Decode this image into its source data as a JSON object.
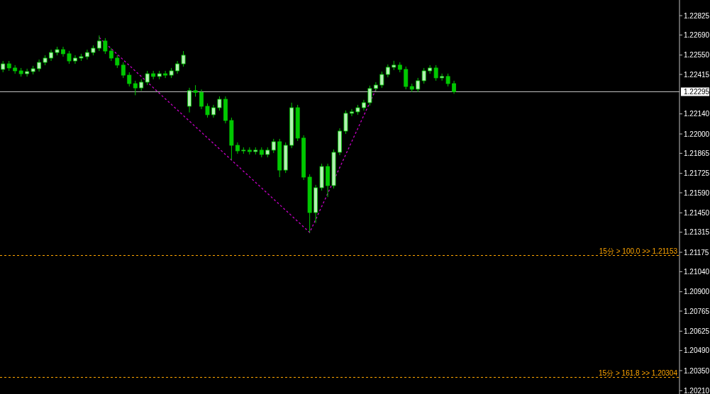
{
  "chart_data": {
    "type": "candlestick",
    "color": "#00c800",
    "tick_labels": "y",
    "categories": [
      null,
      null,
      null,
      null,
      null,
      null,
      null,
      null,
      null,
      null,
      null,
      null,
      null,
      null,
      null,
      null,
      null,
      null,
      null,
      null,
      null,
      null,
      null,
      null,
      null,
      null,
      null,
      null,
      null,
      null,
      null,
      null,
      null,
      null,
      null,
      null,
      null,
      null,
      null,
      null,
      null,
      null,
      null,
      null,
      null,
      null,
      null,
      null,
      null,
      null,
      null,
      null,
      null,
      null,
      null,
      null,
      null,
      null,
      null,
      null,
      null,
      null,
      null,
      null,
      null,
      null,
      null,
      null,
      null,
      null,
      null,
      null,
      null,
      null,
      null,
      null,
      null,
      null,
      null,
      null,
      null,
      null,
      null,
      null,
      null,
      null,
      null,
      null,
      null,
      null,
      null,
      null,
      null,
      null,
      null,
      null,
      null,
      null,
      null,
      null,
      null,
      null,
      null,
      null,
      null,
      null,
      null,
      null,
      null,
      null,
      null,
      null,
      null
    ],
    "ohlc": [
      [
        1.2245,
        1.22509,
        1.2243,
        1.22489
      ],
      [
        1.22489,
        1.22509,
        1.2244,
        1.2246
      ],
      [
        1.2246,
        1.2248,
        1.2242,
        1.2244
      ],
      [
        1.2244,
        1.2246,
        1.224,
        1.2242
      ],
      [
        1.2242,
        1.22455,
        1.224,
        1.22435
      ],
      [
        1.22435,
        1.22475,
        1.22415,
        1.22455
      ],
      [
        1.22455,
        1.22519,
        1.22435,
        1.22499
      ],
      [
        1.22499,
        1.22549,
        1.22479,
        1.22529
      ],
      [
        1.22529,
        1.22588,
        1.22509,
        1.22568
      ],
      [
        1.22568,
        1.22608,
        1.22548,
        1.22588
      ],
      [
        1.22588,
        1.22608,
        1.22539,
        1.22559
      ],
      [
        1.22559,
        1.22579,
        1.22489,
        1.22509
      ],
      [
        1.22509,
        1.22549,
        1.22489,
        1.22529
      ],
      [
        1.22529,
        1.22559,
        1.22509,
        1.22539
      ],
      [
        1.22539,
        1.22588,
        1.22519,
        1.22568
      ],
      [
        1.22568,
        1.22618,
        1.22548,
        1.22598
      ],
      [
        1.22598,
        1.22687,
        1.22578,
        1.22648
      ],
      [
        1.22648,
        1.22668,
        1.22558,
        1.22578
      ],
      [
        1.22578,
        1.22598,
        1.22509,
        1.22529
      ],
      [
        1.22529,
        1.22549,
        1.2246,
        1.2248
      ],
      [
        1.2248,
        1.225,
        1.2239,
        1.2241
      ],
      [
        1.2241,
        1.2243,
        1.22331,
        1.22351
      ],
      [
        1.22351,
        1.22371,
        1.2227,
        1.22321
      ],
      [
        1.22321,
        1.22381,
        1.22301,
        1.22361
      ],
      [
        1.22361,
        1.2244,
        1.22341,
        1.2242
      ],
      [
        1.2242,
        1.2244,
        1.22381,
        1.22401
      ],
      [
        1.22401,
        1.2244,
        1.22381,
        1.2242
      ],
      [
        1.2242,
        1.2244,
        1.2239,
        1.2241
      ],
      [
        1.2241,
        1.2246,
        1.2239,
        1.2244
      ],
      [
        1.2244,
        1.22509,
        1.2242,
        1.22489
      ],
      [
        1.22489,
        1.22578,
        1.22469,
        1.22549
      ],
      [
        1.22193,
        1.22322,
        1.2215,
        1.22302
      ],
      [
        1.22302,
        1.2234,
        1.2226,
        1.2229
      ],
      [
        1.2229,
        1.2231,
        1.22173,
        1.22193
      ],
      [
        1.22193,
        1.22213,
        1.22114,
        1.22134
      ],
      [
        1.22134,
        1.22203,
        1.22114,
        1.22183
      ],
      [
        1.22183,
        1.22262,
        1.22163,
        1.22242
      ],
      [
        1.22242,
        1.22262,
        1.22074,
        1.22094
      ],
      [
        1.22094,
        1.22114,
        1.2182,
        1.21921
      ],
      [
        1.21921,
        1.21941,
        1.21862,
        1.21882
      ],
      [
        1.21882,
        1.21907,
        1.21862,
        1.21887
      ],
      [
        1.21887,
        1.21907,
        1.21857,
        1.21877
      ],
      [
        1.21877,
        1.21907,
        1.21857,
        1.21887
      ],
      [
        1.21887,
        1.21907,
        1.21837,
        1.21857
      ],
      [
        1.21857,
        1.21907,
        1.21837,
        1.21887
      ],
      [
        1.21887,
        1.21966,
        1.21867,
        1.21946
      ],
      [
        1.21946,
        1.21966,
        1.21699,
        1.21748
      ],
      [
        1.21748,
        1.21941,
        1.21728,
        1.21921
      ],
      [
        1.21921,
        1.22218,
        1.21901,
        1.22183
      ],
      [
        1.22183,
        1.22203,
        1.21951,
        1.21971
      ],
      [
        1.21971,
        1.21991,
        1.21679,
        1.21699
      ],
      [
        1.21699,
        1.21719,
        1.21313,
        1.21452
      ],
      [
        1.21452,
        1.21645,
        1.2138,
        1.21625
      ],
      [
        1.21625,
        1.21793,
        1.21605,
        1.21773
      ],
      [
        1.21773,
        1.21793,
        1.2156,
        1.2164
      ],
      [
        1.2164,
        1.21892,
        1.2162,
        1.21872
      ],
      [
        1.21872,
        1.2204,
        1.21852,
        1.2202
      ],
      [
        1.2202,
        1.22164,
        1.22,
        1.22144
      ],
      [
        1.22144,
        1.22174,
        1.22124,
        1.22154
      ],
      [
        1.22154,
        1.22203,
        1.22134,
        1.22183
      ],
      [
        1.22183,
        1.22238,
        1.22163,
        1.22218
      ],
      [
        1.22218,
        1.22337,
        1.22198,
        1.22317
      ],
      [
        1.22317,
        1.22361,
        1.22297,
        1.22341
      ],
      [
        1.22341,
        1.22435,
        1.22321,
        1.22415
      ],
      [
        1.22415,
        1.22485,
        1.22395,
        1.22465
      ],
      [
        1.22465,
        1.2251,
        1.22445,
        1.2248
      ],
      [
        1.2248,
        1.225,
        1.2243,
        1.2245
      ],
      [
        1.2245,
        1.2247,
        1.22311,
        1.22331
      ],
      [
        1.22331,
        1.22351,
        1.22292,
        1.22312
      ],
      [
        1.22312,
        1.22391,
        1.22292,
        1.22371
      ],
      [
        1.22371,
        1.2246,
        1.22351,
        1.2244
      ],
      [
        1.2244,
        1.2248,
        1.2242,
        1.2246
      ],
      [
        1.2246,
        1.2248,
        1.22371,
        1.22391
      ],
      [
        1.22391,
        1.22421,
        1.22371,
        1.22401
      ],
      [
        1.22401,
        1.22421,
        1.22331,
        1.22351
      ],
      [
        1.22351,
        1.22371,
        1.2228,
        1.22295
      ],
      null,
      null,
      null,
      null,
      null,
      null,
      null,
      null,
      null,
      null,
      null,
      null,
      null,
      null,
      null,
      null,
      null,
      null,
      null,
      null,
      null,
      null,
      null,
      null,
      null,
      null,
      null,
      null,
      null,
      null,
      null,
      null,
      null,
      null,
      null,
      null,
      null
    ],
    "series": [
      {
        "type": "line",
        "color": "#c800c8",
        "line_style": "dashed",
        "values": [
          null,
          null,
          null,
          null,
          null,
          null,
          null,
          null,
          null,
          null,
          null,
          null,
          null,
          null,
          null,
          null,
          1.22672,
          null,
          null,
          null,
          null,
          null,
          null,
          null,
          null,
          null,
          null,
          null,
          null,
          null,
          null,
          null,
          null,
          null,
          null,
          null,
          null,
          null,
          null,
          null,
          null,
          null,
          null,
          null,
          null,
          null,
          null,
          null,
          null,
          null,
          null,
          1.21313,
          null,
          null,
          null,
          null,
          null,
          null,
          null,
          null,
          null,
          null,
          1.2231,
          null,
          null,
          null,
          null,
          null,
          null,
          null,
          null,
          null,
          null,
          null,
          null,
          null,
          null,
          null,
          null,
          null,
          null,
          null,
          null,
          null,
          null,
          null,
          null,
          null,
          null,
          null,
          null,
          null,
          null,
          null,
          null,
          null,
          null,
          null,
          null,
          null,
          null,
          null,
          null,
          null,
          null,
          null,
          null,
          null,
          null,
          null,
          null,
          null,
          null
        ]
      }
    ],
    "ylim": [
      1.20187,
      1.22934
    ],
    "yticks": [
      1.22825,
      {
        "value": 1.2269,
        "label": "1.22690"
      },
      {
        "value": 1.2255,
        "label": "1.22550"
      },
      1.22415,
      {
        "value": 1.2214,
        "label": "1.22140"
      },
      {
        "value": 1.22,
        "label": "1.22000"
      },
      1.21865,
      1.21725,
      {
        "value": 1.2159,
        "label": "1.21590"
      },
      {
        "value": 1.2145,
        "label": "1.21450"
      },
      1.21315,
      1.21175,
      {
        "value": 1.2104,
        "label": "1.21040"
      },
      {
        "value": 1.209,
        "label": "1.20900"
      },
      1.20765,
      1.20625,
      {
        "value": 1.2049,
        "label": "1.20490"
      },
      {
        "value": 1.2035,
        "label": "1.20350"
      },
      {
        "value": 1.2021,
        "label": "1.20210"
      }
    ],
    "ref_lines": [
      {
        "axis": "y",
        "value": 1.22295,
        "label": "1.22295",
        "color": "#c0c0c0",
        "line_style": "solid"
      },
      {
        "axis": "y",
        "value": 1.21153,
        "label": "15分 > 100.0 >> 1.21153",
        "color": "#ffa500",
        "line_style": "dashed"
      },
      {
        "axis": "y",
        "value": 1.20304,
        "label": "15分 > 161.8 >> 1.20304",
        "color": "#ffa500",
        "line_style": "dashed"
      }
    ]
  }
}
